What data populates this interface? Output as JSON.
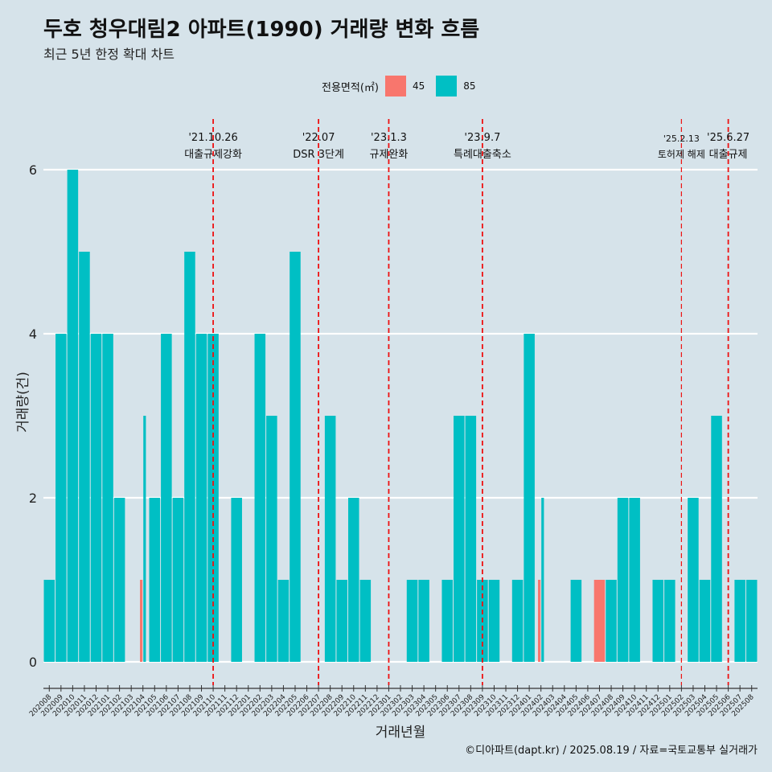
{
  "title": "두호 청우대림2 아파트(1990) 거래량 변화 흐름",
  "subtitle": "최근 5년 한정 확대 차트",
  "caption": "©디아파트(dapt.kr) / 2025.08.19 / 자료=국토교통부 실거래가",
  "colors": {
    "background": "#d6e3ea",
    "s45": "#f8766d",
    "s85": "#00bfc4",
    "event_line": "#ee1111",
    "grid": "#ffffff"
  },
  "legend": {
    "title": "전용면적(㎡)",
    "items": [
      {
        "label": "45",
        "color": "#f8766d"
      },
      {
        "label": "85",
        "color": "#00bfc4"
      }
    ]
  },
  "chart_data": {
    "type": "bar",
    "xlabel": "거래년월",
    "ylabel": "거래량(건)",
    "ylim": [
      0,
      6.5
    ],
    "yticks": [
      0,
      2,
      4,
      6
    ],
    "grid": true,
    "legend_position": "top",
    "categories": [
      "202008",
      "202009",
      "202010",
      "202011",
      "202012",
      "202101",
      "202102",
      "202103",
      "202104",
      "202105",
      "202106",
      "202107",
      "202108",
      "202109",
      "202110",
      "202111",
      "202112",
      "202201",
      "202202",
      "202203",
      "202204",
      "202205",
      "202206",
      "202207",
      "202208",
      "202209",
      "202210",
      "202211",
      "202212",
      "202301",
      "202302",
      "202303",
      "202304",
      "202305",
      "202306",
      "202307",
      "202308",
      "202309",
      "202310",
      "202311",
      "202312",
      "202401",
      "202402",
      "202403",
      "202404",
      "202405",
      "202406",
      "202407",
      "202408",
      "202409",
      "202410",
      "202411",
      "202412",
      "202501",
      "202502",
      "202503",
      "202504",
      "202505",
      "202506",
      "202507",
      "202508"
    ],
    "series": [
      {
        "name": "45",
        "values": [
          0,
          0,
          0,
          0,
          0,
          0,
          0,
          0,
          1,
          0,
          0,
          0,
          0,
          0,
          0,
          0,
          0,
          0,
          0,
          0,
          0,
          0,
          0,
          0,
          0,
          0,
          0,
          0,
          0,
          0,
          0,
          0,
          0,
          0,
          0,
          0,
          0,
          0,
          0,
          0,
          0,
          0,
          1,
          0,
          0,
          0,
          0,
          1,
          0,
          0,
          0,
          0,
          0,
          0,
          0,
          0,
          0,
          0,
          0,
          0,
          0
        ]
      },
      {
        "name": "85",
        "values": [
          1,
          4,
          6,
          5,
          4,
          4,
          2,
          0,
          3,
          2,
          4,
          2,
          5,
          4,
          4,
          0,
          2,
          0,
          4,
          3,
          1,
          5,
          0,
          0,
          3,
          1,
          2,
          1,
          0,
          0,
          0,
          1,
          1,
          0,
          1,
          3,
          3,
          1,
          1,
          0,
          1,
          4,
          2,
          0,
          0,
          1,
          0,
          0,
          1,
          2,
          2,
          0,
          1,
          1,
          0,
          2,
          1,
          3,
          0,
          1,
          1
        ]
      }
    ],
    "events": [
      {
        "date": "'21.10.26",
        "label": "대출규제강화",
        "category": "202110"
      },
      {
        "date": "'22.07",
        "label": "DSR 3단계",
        "category": "202207"
      },
      {
        "date": "'23.1.3",
        "label": "규제완화",
        "category": "202301"
      },
      {
        "date": "'23.9.7",
        "label": "특례대출축소",
        "category": "202309"
      },
      {
        "date": "'25.2.13",
        "label": "토허제 해제",
        "category": "202502"
      },
      {
        "date": "'25.6.27",
        "label": "대출규제",
        "category": "202506"
      }
    ]
  }
}
